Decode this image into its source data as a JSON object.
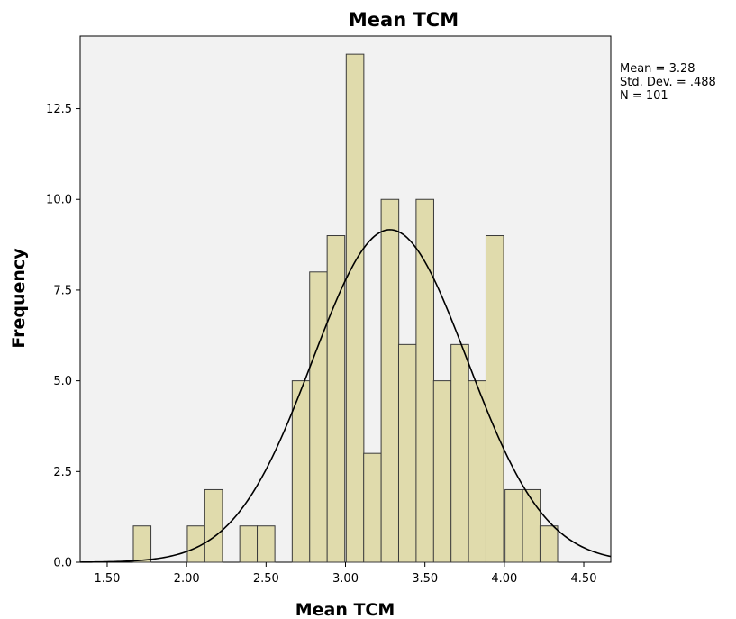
{
  "chart_data": {
    "type": "bar",
    "title": "Mean TCM",
    "xlabel": "Mean TCM",
    "ylabel": "Frequency",
    "xlim": [
      1.33,
      4.67
    ],
    "ylim": [
      0,
      14.5
    ],
    "x_ticks": [
      1.5,
      2.0,
      2.5,
      3.0,
      3.5,
      4.0,
      4.5
    ],
    "x_tick_labels": [
      "1.50",
      "2.00",
      "2.50",
      "3.00",
      "3.50",
      "4.00",
      "4.50"
    ],
    "y_ticks": [
      0,
      2.5,
      5,
      7.5,
      10,
      12.5
    ],
    "y_tick_labels": [
      "0.0",
      "2.5",
      "5.0",
      "7.5",
      "10.0",
      "12.5"
    ],
    "bin_width": 0.111,
    "bars": [
      {
        "x": 1.72,
        "value": 1
      },
      {
        "x": 2.06,
        "value": 1
      },
      {
        "x": 2.17,
        "value": 2
      },
      {
        "x": 2.39,
        "value": 1
      },
      {
        "x": 2.5,
        "value": 1
      },
      {
        "x": 2.72,
        "value": 5
      },
      {
        "x": 2.83,
        "value": 8
      },
      {
        "x": 2.94,
        "value": 9
      },
      {
        "x": 3.06,
        "value": 14
      },
      {
        "x": 3.17,
        "value": 3
      },
      {
        "x": 3.28,
        "value": 10
      },
      {
        "x": 3.39,
        "value": 6
      },
      {
        "x": 3.5,
        "value": 10
      },
      {
        "x": 3.61,
        "value": 5
      },
      {
        "x": 3.72,
        "value": 6
      },
      {
        "x": 3.83,
        "value": 5
      },
      {
        "x": 3.94,
        "value": 9
      },
      {
        "x": 4.06,
        "value": 2
      },
      {
        "x": 4.17,
        "value": 2
      },
      {
        "x": 4.28,
        "value": 1
      }
    ],
    "normal_curve": {
      "mean": 3.28,
      "sd": 0.488,
      "n": 101
    },
    "stats": {
      "mean": "Mean = 3.28",
      "std_dev": "Std. Dev. = .488",
      "n": "N = 101"
    },
    "legend_position": "top-right",
    "grid": false,
    "colors": {
      "plot_background": "#f2f2f2",
      "bar_fill": "#e0dbac",
      "bar_stroke": "#3a3a3a",
      "curve": "#000000"
    }
  }
}
